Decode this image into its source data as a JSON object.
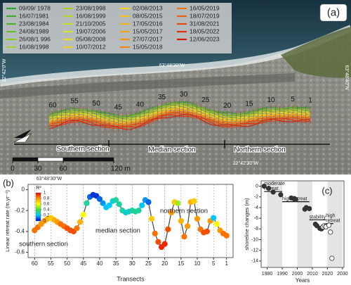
{
  "panel_a": {
    "label": "(a)",
    "legend": [
      {
        "name": "09/09/ 1978",
        "color": "#2ca02c"
      },
      {
        "name": "16/07/1981",
        "color": "#3daa2a"
      },
      {
        "name": "23/08/1984",
        "color": "#55b52a"
      },
      {
        "name": "24/08/1989",
        "color": "#6ec02a"
      },
      {
        "name": "26/08/1 996",
        "color": "#86c929"
      },
      {
        "name": "16/08/1998",
        "color": "#9ed12a"
      },
      {
        "name": "23/08/1998",
        "color": "#a8cf28"
      },
      {
        "name": "16/08/1999",
        "color": "#b8d52a"
      },
      {
        "name": "21/10/2005",
        "color": "#c9dc2c"
      },
      {
        "name": "19/07/2006",
        "color": "#d6e02e"
      },
      {
        "name": "05/08/2008",
        "color": "#e2dc2a"
      },
      {
        "name": "10/07/2012",
        "color": "#ead02a"
      },
      {
        "name": "02/08/2013",
        "color": "#f0d020"
      },
      {
        "name": "08/05/2015",
        "color": "#f2c21e"
      },
      {
        "name": "17/05/2016",
        "color": "#f3b31c"
      },
      {
        "name": "15/05/2017",
        "color": "#f3a41a"
      },
      {
        "name": "27/07/2017",
        "color": "#f29518"
      },
      {
        "name": "15/05/2018",
        "color": "#f08616"
      },
      {
        "name": "16/05/2019",
        "color": "#ee7414"
      },
      {
        "name": "18/07/2019",
        "color": "#ea6012"
      },
      {
        "name": "31/08/2021",
        "color": "#e54a10"
      },
      {
        "name": "18/05/2022",
        "color": "#de340e"
      },
      {
        "name": "12/06/2023",
        "color": "#d01e0c"
      }
    ],
    "transects": [
      60,
      55,
      50,
      45,
      40,
      35,
      30,
      25,
      20,
      15,
      10,
      5,
      1
    ],
    "sections": [
      "Southern section",
      "Median section",
      "Northern section"
    ],
    "coordinates": {
      "top": "63°48'30\"W",
      "left": "22°42'0\"W",
      "right": "63°48'40\"N",
      "bottom": "22°42'30\"W",
      "bottom_left": "63°48'30\"W"
    },
    "scale_bar": {
      "ticks": [
        0,
        30,
        60,
        {
          "value": 120,
          "label": "120 m"
        }
      ]
    }
  },
  "chart_data": [
    {
      "type": "line",
      "label": "(b)",
      "x_label": "Transects",
      "y_label": "Linear retreat rate (m.yr⁻¹)",
      "x": [
        60,
        59,
        58,
        57,
        56,
        55,
        54,
        53,
        52,
        51,
        50,
        49,
        48,
        47,
        46,
        45,
        44,
        43,
        42,
        41,
        40,
        39,
        38,
        37,
        36,
        35,
        34,
        33,
        32,
        31,
        30,
        29,
        28,
        27,
        26,
        25,
        24,
        23,
        22,
        21,
        20,
        19,
        18,
        17,
        16,
        15,
        14,
        13,
        12,
        11,
        10,
        9,
        8,
        7,
        6,
        5,
        4,
        3,
        2,
        1
      ],
      "values": [
        -0.39,
        -0.36,
        -0.33,
        -0.3,
        -0.28,
        -0.27,
        -0.29,
        -0.31,
        -0.33,
        -0.35,
        -0.37,
        -0.39,
        -0.4,
        -0.37,
        -0.31,
        -0.24,
        -0.13,
        -0.07,
        -0.05,
        -0.06,
        -0.09,
        -0.13,
        -0.17,
        -0.15,
        -0.11,
        -0.1,
        -0.14,
        -0.2,
        -0.22,
        -0.21,
        -0.2,
        -0.21,
        -0.2,
        -0.15,
        -0.1,
        -0.12,
        -0.28,
        -0.42,
        -0.5,
        -0.55,
        -0.52,
        -0.38,
        -0.22,
        -0.12,
        -0.13,
        -0.3,
        -0.45,
        -0.35,
        -0.12,
        -0.11,
        -0.28,
        -0.38,
        -0.41,
        -0.4,
        -0.3,
        -0.27,
        -0.33,
        -0.39,
        -0.42,
        -0.44
      ],
      "r2": [
        0.85,
        0.85,
        0.8,
        0.8,
        0.75,
        0.7,
        0.75,
        0.8,
        0.85,
        0.85,
        0.9,
        0.9,
        0.9,
        0.85,
        0.75,
        0.6,
        0.3,
        0.1,
        0.05,
        0.05,
        0.1,
        0.15,
        0.2,
        0.2,
        0.25,
        0.3,
        0.3,
        0.3,
        0.25,
        0.25,
        0.3,
        0.3,
        0.3,
        0.2,
        0.15,
        0.1,
        0.7,
        0.85,
        0.9,
        0.95,
        0.95,
        0.9,
        0.8,
        0.7,
        0.5,
        0.75,
        0.85,
        0.8,
        0.75,
        0.7,
        0.8,
        0.85,
        0.9,
        0.9,
        0.8,
        0.2,
        0.6,
        0.8,
        0.85,
        0.85
      ],
      "xlim": [
        62,
        -1
      ],
      "xticks": [
        60,
        55,
        50,
        45,
        40,
        35,
        30,
        25,
        20,
        15,
        10,
        5,
        1
      ],
      "ylim": [
        -0.65,
        0.05
      ],
      "yticks": [
        -0.6,
        -0.4,
        -0.2,
        0
      ],
      "line_color": "#505050",
      "grid": "x",
      "colorbar": {
        "title": "R²",
        "ticks": [
          0,
          0.2,
          0.4,
          0.6,
          0.8,
          1
        ],
        "colormap": [
          "#0000cc",
          "#00c8ff",
          "#3cdc3c",
          "#ffff00",
          "#ff9900",
          "#e60000"
        ]
      },
      "annotations": [
        "northern section",
        "median section",
        "southern section"
      ]
    },
    {
      "type": "scatter",
      "label": "(c)",
      "x_label": "Years",
      "y_label": "shoreline changes (m)",
      "series": [
        {
          "marker": "filled",
          "color": "#333333",
          "x": [
            1978,
            1981,
            1984,
            1989,
            1996,
            1998,
            1998,
            1999,
            2005,
            2006,
            2008,
            2012,
            2013,
            2015,
            2016
          ],
          "values": [
            0,
            -0.4,
            -1.1,
            -1.6,
            -2.2,
            -2.4,
            -2.3,
            -2.5,
            -4.3,
            -4.0,
            -4.2,
            -7.1,
            -7.4,
            -7.9,
            -8.0
          ]
        },
        {
          "marker": "open",
          "color": "#333333",
          "x": [
            2017,
            2017,
            2018,
            2019,
            2019,
            2021,
            2022,
            2023
          ],
          "values": [
            -7.7,
            -7.6,
            -7.4,
            -7.5,
            -7.6,
            -7.3,
            -8.6,
            -13.5
          ]
        }
      ],
      "xlim": [
        1976,
        2031
      ],
      "xticks": [
        1980,
        1990,
        2000,
        2010,
        2020,
        2030
      ],
      "ylim": [
        -15.2,
        1
      ],
      "yticks": [
        0,
        -2,
        -4,
        -6,
        -8,
        -10,
        -12,
        -14
      ],
      "periods": [
        {
          "lines": [
            "moderate",
            "retreat"
          ],
          "start": 1978,
          "end": 1990,
          "level": -1
        },
        {
          "lines": [
            "high retreat"
          ],
          "start": 1990,
          "end": 2008,
          "level": -2.9
        },
        {
          "lines": [
            "stability"
          ],
          "start": 2008,
          "end": 2019,
          "level": -6.3
        },
        {
          "lines": [
            "high",
            "retreat"
          ],
          "start": 2019,
          "end": 2024,
          "level": -7.0
        }
      ]
    }
  ]
}
